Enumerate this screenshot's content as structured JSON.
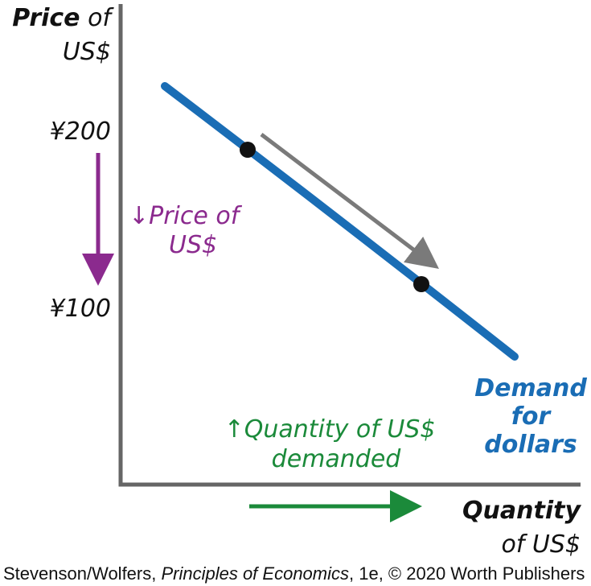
{
  "y_axis": {
    "title_bold": "Price",
    "title_rest": "of",
    "title_line2": "US$"
  },
  "y_labels": [
    "¥200",
    "¥100"
  ],
  "annotations": {
    "price_change": [
      "↓Price of",
      "US$"
    ],
    "quantity_change": [
      "↑Quantity of US$",
      "demanded"
    ]
  },
  "curve_label": [
    "Demand",
    "for",
    "dollars"
  ],
  "x_axis": {
    "title_line1": "Quantity",
    "title_line2": "of US$"
  },
  "credit": {
    "before": "Stevenson/Wolfers, ",
    "italic": "Principles of Economics",
    "after": ", 1e, © 2020 Worth Publishers"
  }
}
